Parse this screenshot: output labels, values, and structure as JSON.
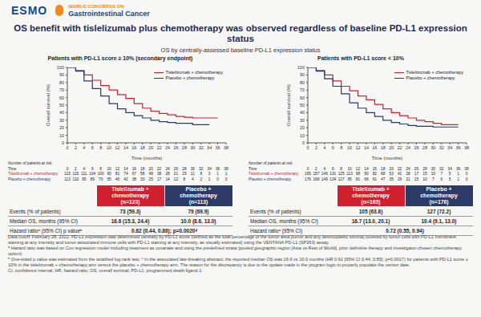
{
  "header": {
    "brand": "ESMO",
    "congress_top": "WORLD CONGRESS ON",
    "congress_name": "Gastrointestinal Cancer"
  },
  "title": "OS benefit with tislelizumab plus chemotherapy was observed regardless of baseline PD-L1 expression status",
  "subtitle": "OS by centrally-assessed baseline PD-L1 expression status",
  "chart_data": [
    {
      "type": "line",
      "title": "Patients with PD-L1 score ≥ 10% (secondary endpoint)",
      "x_label": "Time (months)",
      "y_label": "Overall survival (%)",
      "x": [
        0,
        2,
        4,
        6,
        8,
        10,
        12,
        14,
        16,
        18,
        20,
        22,
        24,
        26,
        28,
        30,
        32,
        34,
        36,
        38
      ],
      "xlim": [
        0,
        38
      ],
      "xticks": [
        0,
        2,
        4,
        6,
        8,
        10,
        12,
        14,
        16,
        18,
        20,
        22,
        24,
        26,
        28,
        30,
        32,
        34,
        36,
        38
      ],
      "ylim": [
        0,
        100
      ],
      "yticks": [
        0,
        10,
        20,
        30,
        40,
        50,
        60,
        70,
        80,
        90,
        100
      ],
      "grid": false,
      "legend": "upper right",
      "line_style": "step",
      "series": [
        {
          "name": "Tislelizumab + chemotherapy",
          "color": "#d0202e",
          "values": [
            100,
            96,
            90,
            83,
            76,
            70,
            64,
            59,
            52,
            46,
            42,
            39,
            37,
            35,
            34,
            33,
            33,
            33,
            33,
            null
          ]
        },
        {
          "name": "Placebo + chemotherapy",
          "color": "#2b3a67",
          "values": [
            100,
            95,
            82,
            72,
            62,
            52,
            45,
            40,
            36,
            33,
            30,
            28,
            27,
            26,
            26,
            24,
            24,
            24,
            null,
            null
          ]
        }
      ],
      "risk_table": {
        "title": "Number of patients at risk",
        "time_label": "Time",
        "times": [
          0,
          2,
          4,
          6,
          8,
          10,
          12,
          14,
          16,
          18,
          20,
          22,
          24,
          26,
          28,
          30,
          32,
          34,
          36,
          38
        ],
        "rows": [
          {
            "name": "Tislelizumab + chemotherapy",
            "values": [
              123,
              115,
              111,
              104,
              100,
              90,
              81,
              74,
              67,
              58,
              48,
              38,
              28,
              21,
              15,
              11,
              8,
              3,
              1,
              1
            ]
          },
          {
            "name": "Placebo + chemotherapy",
            "values": [
              113,
              110,
              95,
              89,
              70,
              55,
              46,
              42,
              38,
              33,
              25,
              17,
              14,
              12,
              8,
              4,
              2,
              1,
              0,
              0
            ]
          }
        ]
      },
      "results_table": {
        "headers": [
          {
            "name": "Tislelizumab + chemotherapy",
            "n": "(n=123)"
          },
          {
            "name": "Placebo + chemotherapy",
            "n": "(n=113)"
          }
        ],
        "rows": [
          {
            "label": "Events (% of patients)",
            "cells": [
              "73 (59.3)",
              "79 (69.9)"
            ]
          },
          {
            "label": "Median OS, months (95% CI)",
            "cells": [
              "16.6 (15.3, 24.4)",
              "10.0 (8.6, 13.0)"
            ]
          },
          {
            "label": "Hazard ratioᵃ (95% CI) p valueᵇ",
            "cells": [
              "0.62 (0.44, 0.86); p=0.0020ᵈ"
            ]
          }
        ]
      }
    },
    {
      "type": "line",
      "title": "Patients with PD-L1 score < 10%",
      "x_label": "Time (months)",
      "y_label": "Overall survival (%)",
      "x": [
        0,
        2,
        4,
        6,
        8,
        10,
        12,
        14,
        16,
        18,
        20,
        22,
        24,
        26,
        28,
        30,
        32,
        34,
        36,
        38
      ],
      "xlim": [
        0,
        38
      ],
      "xticks": [
        0,
        2,
        4,
        6,
        8,
        10,
        12,
        14,
        16,
        18,
        20,
        22,
        24,
        26,
        28,
        30,
        32,
        34,
        36,
        38
      ],
      "ylim": [
        0,
        100
      ],
      "yticks": [
        0,
        10,
        20,
        30,
        40,
        50,
        60,
        70,
        80,
        90,
        100
      ],
      "grid": false,
      "legend": "upper right",
      "line_style": "step",
      "series": [
        {
          "name": "Tislelizumab + chemotherapy",
          "color": "#d0202e",
          "values": [
            100,
            96,
            90,
            82,
            75,
            69,
            62,
            57,
            51,
            45,
            40,
            36,
            33,
            30,
            28,
            26,
            24,
            24,
            24,
            null
          ]
        },
        {
          "name": "Placebo + chemotherapy",
          "color": "#2b3a67",
          "values": [
            100,
            95,
            85,
            75,
            65,
            53,
            46,
            40,
            35,
            30,
            27,
            25,
            23,
            22,
            22,
            21,
            21,
            21,
            21,
            null
          ]
        }
      ],
      "risk_table": {
        "title": "Number of patients at risk",
        "time_label": "Time",
        "times": [
          0,
          2,
          4,
          6,
          8,
          10,
          12,
          14,
          16,
          18,
          20,
          22,
          24,
          26,
          28,
          30,
          32,
          34,
          36,
          38
        ],
        "rows": [
          {
            "name": "Tislelizumab + chemotherapy",
            "values": [
              165,
              157,
              146,
              131,
              125,
              113,
              98,
              90,
              82,
              68,
              53,
              41,
              28,
              17,
              15,
              10,
              7,
              5,
              1,
              0
            ]
          },
          {
            "name": "Placebo + chemotherapy",
            "values": [
              176,
              168,
              149,
              134,
              117,
              95,
              81,
              68,
              61,
              47,
              35,
              29,
              21,
              15,
              10,
              7,
              6,
              5,
              1,
              0
            ]
          }
        ]
      },
      "results_table": {
        "headers": [
          {
            "name": "Tislelizumab + chemotherapy",
            "n": "(n=165)"
          },
          {
            "name": "Placebo + chemotherapy",
            "n": "(n=176)"
          }
        ],
        "rows": [
          {
            "label": "Events (% of patients)",
            "cells": [
              "105 (63.6)",
              "127 (72.2)"
            ]
          },
          {
            "label": "Median OS, months (95% CI)",
            "cells": [
              "16.7 (13.0, 20.1)",
              "10.4 (9.1, 13.0)"
            ]
          },
          {
            "label": "Hazard ratioᵃ (95% CI)",
            "cells": [
              "0.72 (0.55, 0.94)"
            ]
          }
        ]
      }
    }
  ],
  "footnotes": [
    "Data cutoff: February 28, 2022. PD-L1 expression was determined centrally by PD-L1 score (defined as the total percentage of the tumor area [tumor and any desmoplastic stroma] covered by tumor cells with PD-L1 membrane staining at any intensity and tumor-associated immune cells with PD-L1 staining at any intensity, as visually estimated) using the VENTANA PD-L1 (SP263) assay.",
    "ᵃ Hazard ratio was based on Cox regression model including treatment as covariate and using the predefined strata (pooled geographic region [Asia vs Rest of World], prior definitive therapy and investigator-chosen chemotherapy option).",
    "ᵇ One-sided p value was estimated from the stratified log-rank test. ᶜ In the associated late-breaking abstract, the reported median OS was 16.6 vs 10.0 months (HR 0.61 [95% CI 0.44, 0.85]; p=0.0017) for patients with PD-L1 score ≥ 10% in the tislelizumab + chemotherapy arm versus the placebo + chemotherapy arm. The reason for the discrepancy is due to the update made in the program logic to properly populate the censor date.",
    "CI, confidence interval; HR, hazard ratio; OS, overall survival; PD-L1, programmed death-ligand 1."
  ]
}
